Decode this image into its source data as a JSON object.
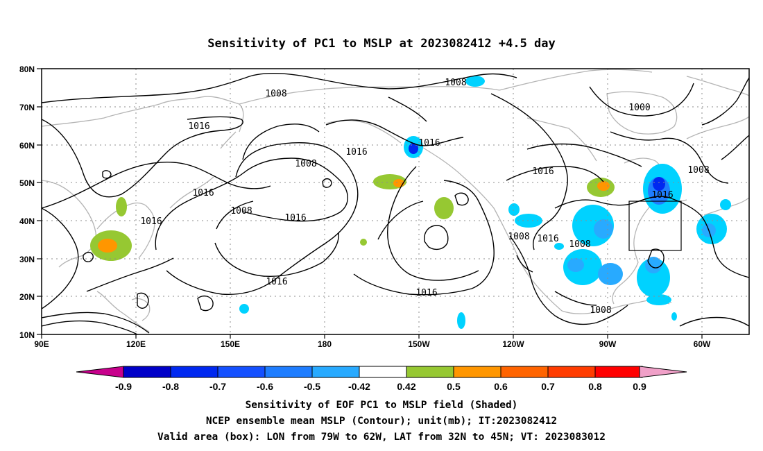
{
  "title": "Sensitivity of PC1 to MSLP at 2023082412 +4.5 day",
  "map": {
    "lon_range": [
      "90E",
      "35W"
    ],
    "lat_range": [
      "10N",
      "80N"
    ],
    "x_ticks": [
      "90E",
      "120E",
      "150E",
      "180",
      "150W",
      "120W",
      "90W",
      "60W"
    ],
    "y_ticks": [
      "80N",
      "70N",
      "60N",
      "50N",
      "40N",
      "30N",
      "20N",
      "10N"
    ],
    "gridlines": "dotted",
    "coastline_color": "#b4b4b4",
    "contour_color": "#000000",
    "contour_labels": [
      "1008",
      "1016",
      "1016",
      "1016",
      "1008",
      "1008",
      "1016",
      "1016",
      "1008",
      "1016",
      "1016",
      "1016",
      "1000",
      "1008",
      "1016",
      "1016",
      "1008",
      "1016",
      "1008",
      "1008"
    ],
    "valid_box": {
      "lon": [
        -79,
        -62
      ],
      "lat": [
        32,
        45
      ]
    }
  },
  "colorbar": {
    "levels": [
      "-0.9",
      "-0.8",
      "-0.7",
      "-0.6",
      "-0.5",
      "-0.42",
      "0.42",
      "0.5",
      "0.6",
      "0.7",
      "0.8",
      "0.9"
    ],
    "colors": [
      "#c8008c",
      "#0000c8",
      "#0028f0",
      "#1450ff",
      "#1e7dff",
      "#28aaff",
      "#00d2ff",
      "#ffffff",
      "#96c832",
      "#ff9600",
      "#ff6400",
      "#ff3c00",
      "#ff0000",
      "#f0a0c8"
    ]
  },
  "captions": [
    "Sensitivity of EOF PC1 to MSLP field (Shaded)",
    "NCEP ensemble mean MSLP (Contour); unit(mb); IT:2023082412",
    "Valid area (box): LON from 79W to 62W, LAT from 32N to 45N; VT: 2023083012"
  ]
}
